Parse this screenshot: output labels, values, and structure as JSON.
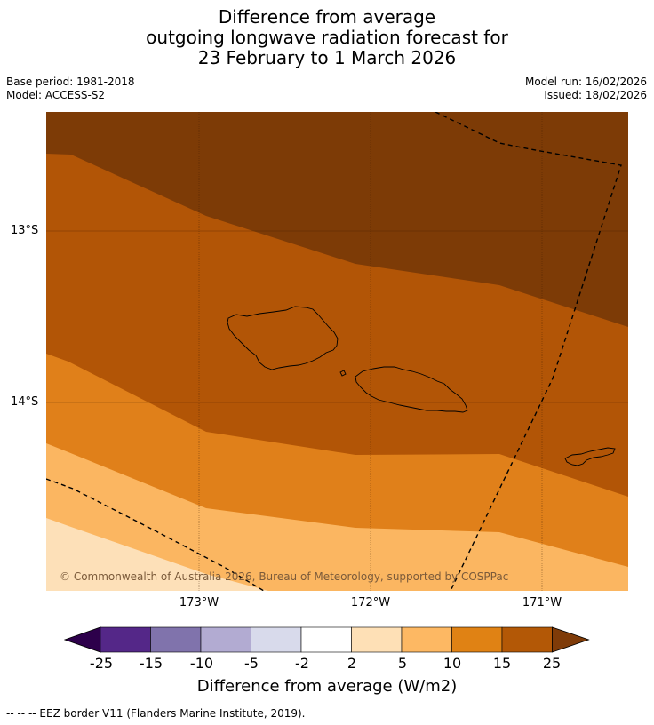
{
  "title": {
    "line1": "Difference from average",
    "line2": "outgoing longwave radiation forecast for",
    "line3": "23 February to 1 March 2026"
  },
  "meta": {
    "base_period": "Base period: 1981-2018",
    "model": "Model: ACCESS-S2",
    "model_run": "Model run: 16/02/2026",
    "issued": "Issued: 18/02/2026"
  },
  "map": {
    "lat_labels": [
      "13°S",
      "14°S"
    ],
    "lon_labels": [
      "173°W",
      "172°W",
      "171°W"
    ],
    "copyright": "© Commonwealth of Australia 2026, Bureau of Meteorology, supported by COSPPac",
    "zone_colors": [
      "#7d3b06",
      "#b25506",
      "#e0801a",
      "#fbb661",
      "#fde0b8"
    ]
  },
  "colorbar": {
    "ticks": [
      "-25",
      "-15",
      "-10",
      "-5",
      "-2",
      "2",
      "5",
      "10",
      "15",
      "25"
    ],
    "colors": [
      "#2d004b",
      "#542788",
      "#8073ac",
      "#b2abd2",
      "#d8daeb",
      "#ffffff",
      "#fee0b6",
      "#fdb863",
      "#e08214",
      "#b35806",
      "#7f3b08"
    ],
    "label": "Difference from average (W/m2)"
  },
  "footnote": "--  --  -- EEZ border V11 (Flanders Marine Institute, 2019)."
}
